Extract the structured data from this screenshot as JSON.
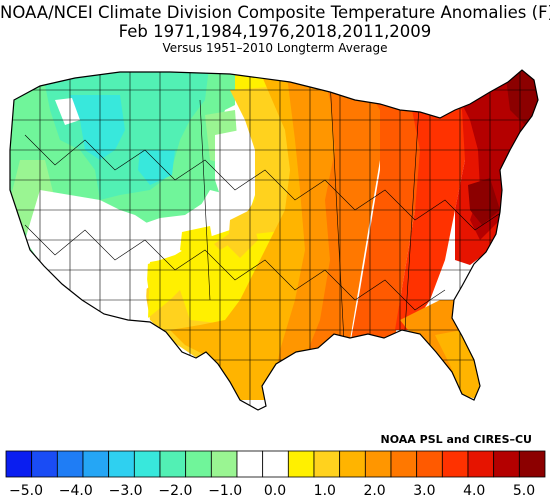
{
  "title": "NOAA/NCEI Climate Division Composite Temperature Anomalies (F)",
  "subtitle": "Feb  1971,1984,1976,2018,2011,2009",
  "subtitle2": "Versus 1951–2010 Longterm Average",
  "credit": "NOAA PSL and CIRES–CU",
  "colorbar": {
    "colors": [
      "#0a1ef0",
      "#1a4cf5",
      "#1f7df5",
      "#25a6f5",
      "#2fd0f0",
      "#38e8dc",
      "#52f0b4",
      "#70f59a",
      "#9af592",
      "#ffffff",
      "#ffffff",
      "#fff000",
      "#ffd21e",
      "#ffb400",
      "#ff9600",
      "#ff7800",
      "#ff5a00",
      "#ff3200",
      "#e61400",
      "#b40000",
      "#8c0000"
    ],
    "ticks": [
      "−5.0",
      "−4.0",
      "−3.0",
      "−2.0",
      "−1.0",
      "0.0",
      "1.0",
      "2.0",
      "3.0",
      "4.0",
      "5.0"
    ],
    "min": -5.0,
    "max": 5.0
  }
}
